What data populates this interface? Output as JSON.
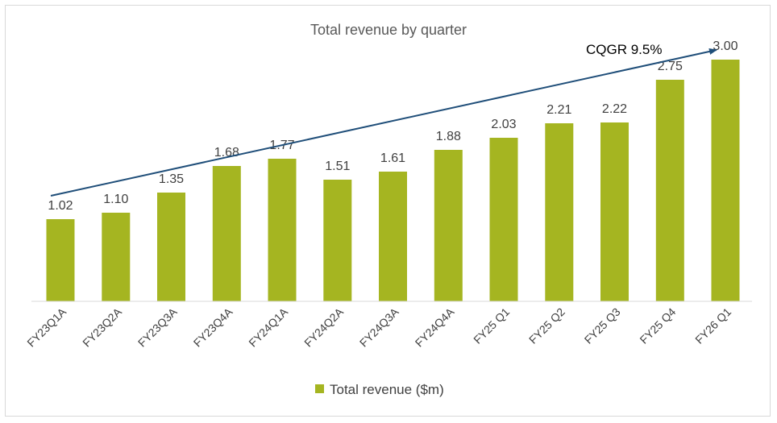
{
  "chart_data": {
    "type": "bar",
    "title": "Total revenue by quarter",
    "categories": [
      "FY23Q1A",
      "FY23Q2A",
      "FY23Q3A",
      "FY23Q4A",
      "FY24Q1A",
      "FY24Q2A",
      "FY24Q3A",
      "FY24Q4A",
      "FY25 Q1",
      "FY25 Q2",
      "FY25 Q3",
      "FY25 Q4",
      "FY26 Q1"
    ],
    "series": [
      {
        "name": "Total revenue ($m)",
        "values": [
          1.02,
          1.1,
          1.35,
          1.68,
          1.77,
          1.51,
          1.61,
          1.88,
          2.03,
          2.21,
          2.22,
          2.75,
          3.0
        ]
      }
    ],
    "value_labels": [
      "1.02",
      "1.10",
      "1.35",
      "1.68",
      "1.77",
      "1.51",
      "1.61",
      "1.88",
      "2.03",
      "2.21",
      "2.22",
      "2.75",
      "3.00"
    ],
    "annotation": "CQGR 9.5%",
    "ylim": [
      0,
      3.5
    ],
    "grid": false,
    "legend_position": "bottom",
    "colors": {
      "bar": "#A5B521",
      "arrow": "#1F4E79",
      "axis": "#d9d9d9"
    }
  }
}
